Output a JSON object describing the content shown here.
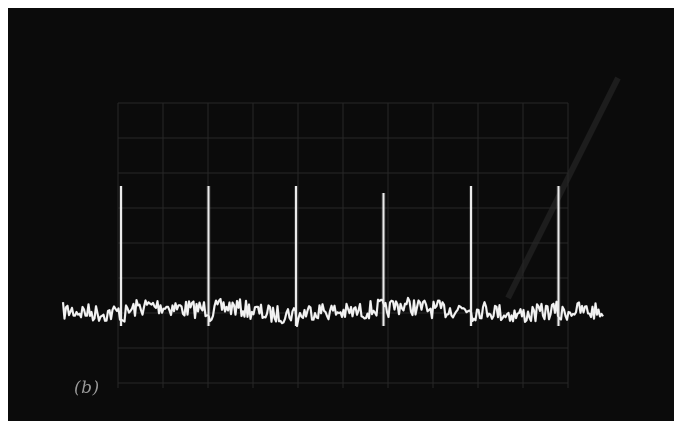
{
  "panel_label": "(b)",
  "colors": {
    "screen_background": "#0b0b0b",
    "trace": "#e8e8e8",
    "graticule": "#3a3a3a"
  },
  "scope": {
    "pulse_count": 6,
    "graticule": true
  }
}
